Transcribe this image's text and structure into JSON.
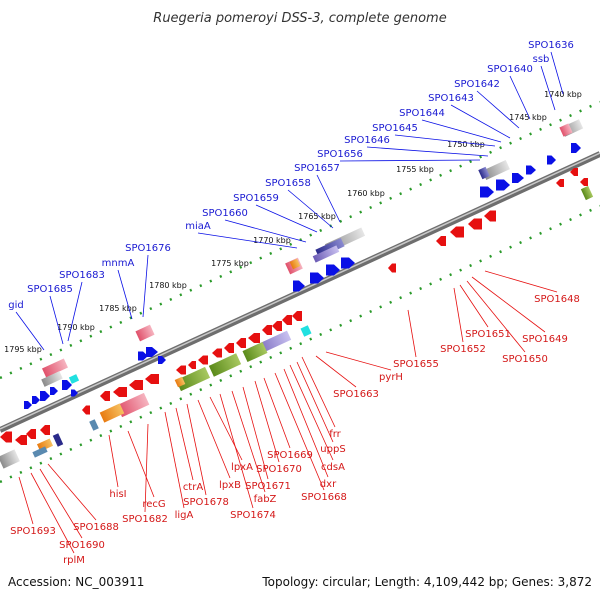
{
  "title": "Ruegeria pomeroyi DSS-3, complete genome",
  "footer": {
    "accession": "Accession: NC_003911",
    "summary": "Topology: circular; Length: 4,109,442 bp; Genes: 3,872"
  },
  "ruler": [
    "1740 kbp",
    "1745 kbp",
    "1750 kbp",
    "1755 kbp",
    "1760 kbp",
    "1765 kbp",
    "1770 kbp",
    "1775 kbp",
    "1780 kbp",
    "1785 kbp",
    "1790 kbp",
    "1795 kbp"
  ],
  "forward_labels": [
    "SPO1636",
    "ssb",
    "SPO1640",
    "SPO1642",
    "SPO1643",
    "SPO1644",
    "SPO1645",
    "SPO1646",
    "SPO1656",
    "SPO1657",
    "SPO1658",
    "SPO1659",
    "SPO1660",
    "miaA",
    "SPO1676",
    "mnmA",
    "SPO1683",
    "SPO1685",
    "gid"
  ],
  "reverse_labels": [
    "SPO1648",
    "SPO1649",
    "SPO1650",
    "SPO1651",
    "SPO1652",
    "SPO1655",
    "pyrH",
    "SPO1663",
    "frr",
    "uppS",
    "cdsA",
    "dxr",
    "SPO1668",
    "SPO1669",
    "SPO1670",
    "SPO1671",
    "fabZ",
    "SPO1674",
    "lpxA",
    "lpxB",
    "SPO1678",
    "ctrA",
    "ligA",
    "SPO1682",
    "recG",
    "hisI",
    "SPO1688",
    "SPO1690",
    "rplM",
    "SPO1693"
  ],
  "colors": {
    "forward": "#0a10e6",
    "reverse": "#e61010",
    "label_forward": "#1a1ad2",
    "label_reverse": "#d41818",
    "backbone": "#777777",
    "dots": "#2a9a2a"
  }
}
